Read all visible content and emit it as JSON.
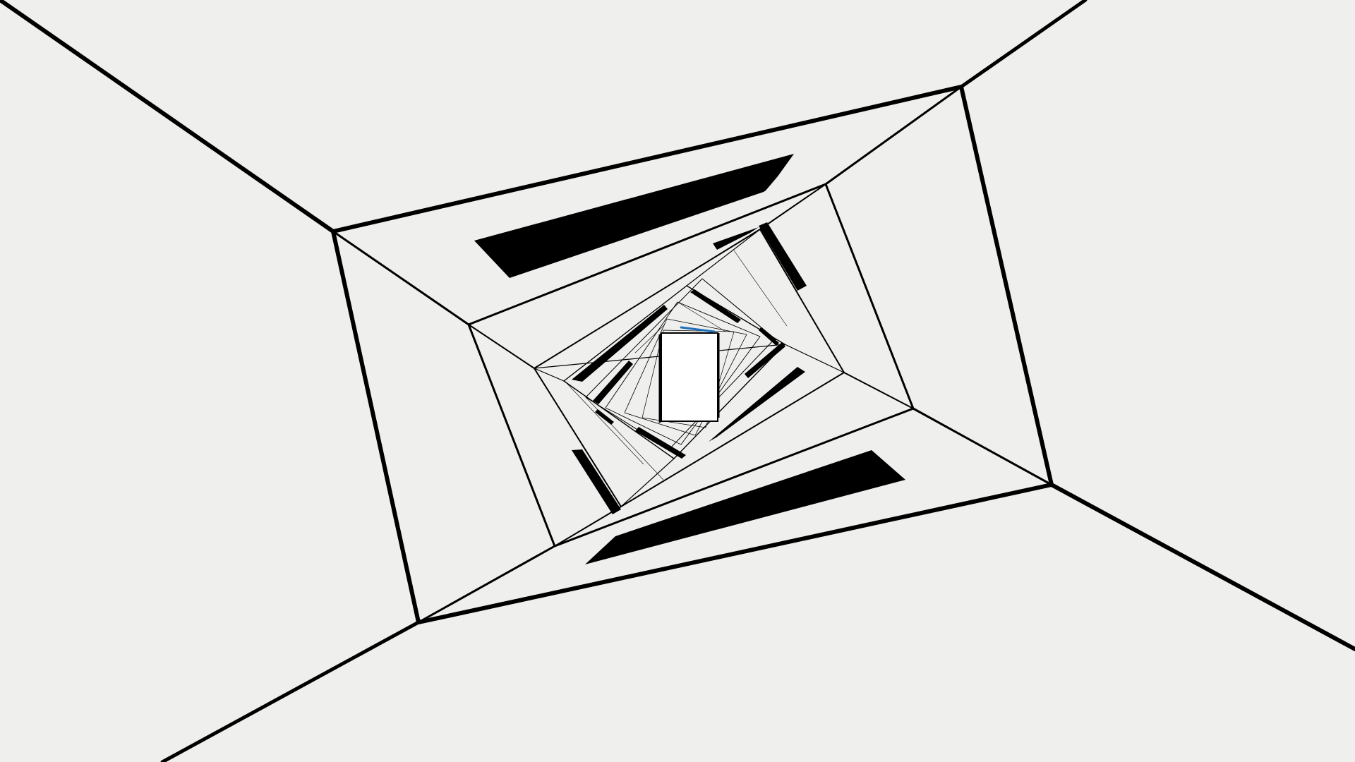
{
  "game": {
    "scene": "rotating-tunnel",
    "background_color": "#efefed",
    "line_color": "#000000",
    "accent_color": "#1e6fb8",
    "visible_text": []
  }
}
